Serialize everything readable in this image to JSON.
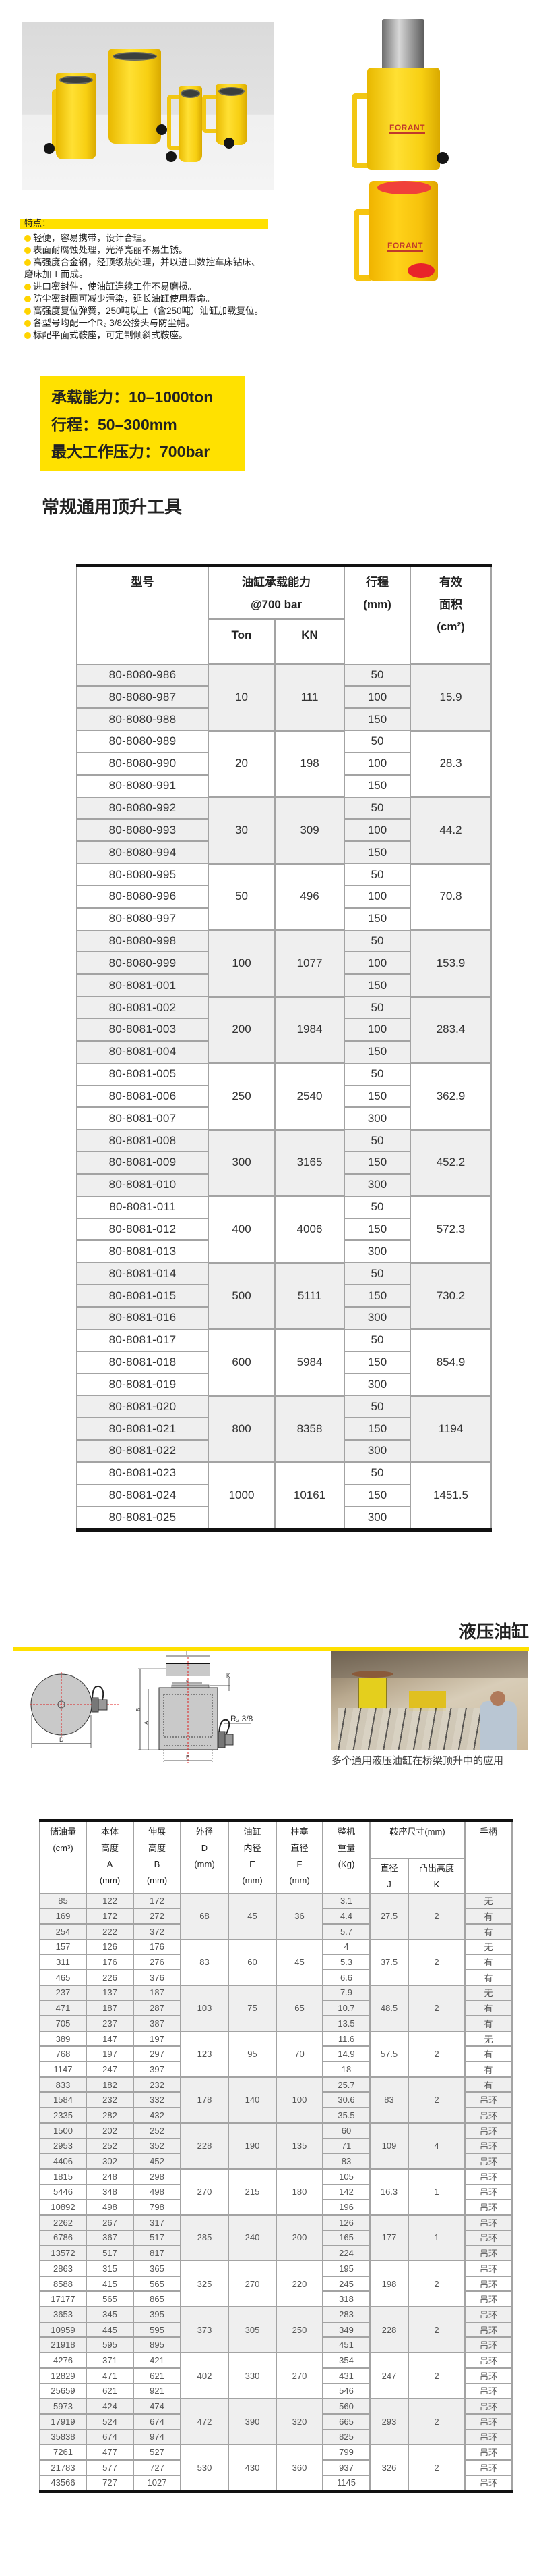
{
  "brand": {
    "logo_text": "FORANT"
  },
  "features": {
    "title": "特点：",
    "items": [
      "轻便，容易携带，设计合理。",
      "表面耐腐蚀处理，光泽亮丽不易生锈。",
      "高强度合金钢，经顶级热处理，并以进口数控车床钻床、\n磨床加工而成。",
      "进口密封件，使油缸连续工作不易磨损。",
      "防尘密封圈可减少污染，延长油缸使用寿命。",
      "高强度复位弹簧，250吨以上（含250吨）油缸加载复位。",
      "各型号均配一个R₂ 3/8公接头与防尘帽。",
      "标配平面式鞍座，可定制倾斜式鞍座。"
    ]
  },
  "specs": {
    "capacity": "承载能力：10–1000ton",
    "stroke": "行程：50–300mm",
    "pressure": "最大工作压力：700bar"
  },
  "section1": {
    "title": "常规通用顶升工具"
  },
  "table1": {
    "headers": {
      "model": "型号",
      "capacity": "油缸承载能力\n@700 bar",
      "ton": "Ton",
      "kn": "KN",
      "stroke": "行程\n(mm)",
      "area": "有效\n面积\n(cm²)"
    },
    "groups": [
      {
        "ton": "10",
        "kn": "111",
        "area": "15.9",
        "shaded": true,
        "rows": [
          {
            "model": "80-8080-986",
            "stroke": "50"
          },
          {
            "model": "80-8080-987",
            "stroke": "100"
          },
          {
            "model": "80-8080-988",
            "stroke": "150"
          }
        ]
      },
      {
        "ton": "20",
        "kn": "198",
        "area": "28.3",
        "shaded": false,
        "rows": [
          {
            "model": "80-8080-989",
            "stroke": "50"
          },
          {
            "model": "80-8080-990",
            "stroke": "100"
          },
          {
            "model": "80-8080-991",
            "stroke": "150"
          }
        ]
      },
      {
        "ton": "30",
        "kn": "309",
        "area": "44.2",
        "shaded": true,
        "rows": [
          {
            "model": "80-8080-992",
            "stroke": "50"
          },
          {
            "model": "80-8080-993",
            "stroke": "100"
          },
          {
            "model": "80-8080-994",
            "stroke": "150"
          }
        ]
      },
      {
        "ton": "50",
        "kn": "496",
        "area": "70.8",
        "shaded": false,
        "rows": [
          {
            "model": "80-8080-995",
            "stroke": "50"
          },
          {
            "model": "80-8080-996",
            "stroke": "100"
          },
          {
            "model": "80-8080-997",
            "stroke": "150"
          }
        ]
      },
      {
        "ton": "100",
        "kn": "1077",
        "area": "153.9",
        "shaded": true,
        "rows": [
          {
            "model": "80-8080-998",
            "stroke": "50"
          },
          {
            "model": "80-8080-999",
            "stroke": "100"
          },
          {
            "model": "80-8081-001",
            "stroke": "150"
          }
        ]
      },
      {
        "ton": "200",
        "kn": "1984",
        "area": "283.4",
        "shaded": true,
        "rows": [
          {
            "model": "80-8081-002",
            "stroke": "50"
          },
          {
            "model": "80-8081-003",
            "stroke": "100"
          },
          {
            "model": "80-8081-004",
            "stroke": "150"
          }
        ]
      },
      {
        "ton": "250",
        "kn": "2540",
        "area": "362.9",
        "shaded": false,
        "rows": [
          {
            "model": "80-8081-005",
            "stroke": "50"
          },
          {
            "model": "80-8081-006",
            "stroke": "150"
          },
          {
            "model": "80-8081-007",
            "stroke": "300"
          }
        ]
      },
      {
        "ton": "300",
        "kn": "3165",
        "area": "452.2",
        "shaded": true,
        "rows": [
          {
            "model": "80-8081-008",
            "stroke": "50"
          },
          {
            "model": "80-8081-009",
            "stroke": "150"
          },
          {
            "model": "80-8081-010",
            "stroke": "300"
          }
        ]
      },
      {
        "ton": "400",
        "kn": "4006",
        "area": "572.3",
        "shaded": false,
        "rows": [
          {
            "model": "80-8081-011",
            "stroke": "50"
          },
          {
            "model": "80-8081-012",
            "stroke": "150"
          },
          {
            "model": "80-8081-013",
            "stroke": "300"
          }
        ]
      },
      {
        "ton": "500",
        "kn": "5111",
        "area": "730.2",
        "shaded": true,
        "rows": [
          {
            "model": "80-8081-014",
            "stroke": "50"
          },
          {
            "model": "80-8081-015",
            "stroke": "150"
          },
          {
            "model": "80-8081-016",
            "stroke": "300"
          }
        ]
      },
      {
        "ton": "600",
        "kn": "5984",
        "area": "854.9",
        "shaded": false,
        "rows": [
          {
            "model": "80-8081-017",
            "stroke": "50"
          },
          {
            "model": "80-8081-018",
            "stroke": "150"
          },
          {
            "model": "80-8081-019",
            "stroke": "300"
          }
        ]
      },
      {
        "ton": "800",
        "kn": "8358",
        "area": "1194",
        "shaded": true,
        "rows": [
          {
            "model": "80-8081-020",
            "stroke": "50"
          },
          {
            "model": "80-8081-021",
            "stroke": "150"
          },
          {
            "model": "80-8081-022",
            "stroke": "300"
          }
        ]
      },
      {
        "ton": "1000",
        "kn": "10161",
        "area": "1451.5",
        "shaded": false,
        "rows": [
          {
            "model": "80-8081-023",
            "stroke": "50"
          },
          {
            "model": "80-8081-024",
            "stroke": "150"
          },
          {
            "model": "80-8081-025",
            "stroke": "300"
          }
        ]
      }
    ]
  },
  "section2": {
    "title": "液压油缸",
    "caption": "多个通用液压油缸在桥梁顶升中的应用",
    "diagram_labels": {
      "D": "D",
      "F": "F",
      "J": "J",
      "K": "K",
      "A": "A",
      "B": "B",
      "E": "E",
      "port": "R₂ 3/8"
    }
  },
  "table2": {
    "headers": {
      "oil": "储油量\n(cm³)",
      "A": "本体\n高度\nA\n(mm)",
      "B": "伸展\n高度\nB\n(mm)",
      "D": "外径\nD\n(mm)",
      "E": "油缸\n内径\nE\n(mm)",
      "F": "柱塞\n直径\nF\n(mm)",
      "weight": "整机\n重量\n(Kg)",
      "saddle": "鞍座尺寸(mm)",
      "J": "直径\nJ",
      "K": "凸出高度\nK",
      "handle": "手柄"
    },
    "groups": [
      {
        "D": "68",
        "E": "45",
        "F": "36",
        "J": "27.5",
        "K": "2",
        "shaded": true,
        "rows": [
          {
            "oil": "85",
            "A": "122",
            "B": "172",
            "weight": "3.1",
            "handle": "无"
          },
          {
            "oil": "169",
            "A": "172",
            "B": "272",
            "weight": "4.4",
            "handle": "有"
          },
          {
            "oil": "254",
            "A": "222",
            "B": "372",
            "weight": "5.7",
            "handle": "有"
          }
        ]
      },
      {
        "D": "83",
        "E": "60",
        "F": "45",
        "J": "37.5",
        "K": "2",
        "shaded": false,
        "rows": [
          {
            "oil": "157",
            "A": "126",
            "B": "176",
            "weight": "4",
            "handle": "无"
          },
          {
            "oil": "311",
            "A": "176",
            "B": "276",
            "weight": "5.3",
            "handle": "有"
          },
          {
            "oil": "465",
            "A": "226",
            "B": "376",
            "weight": "6.6",
            "handle": "有"
          }
        ]
      },
      {
        "D": "103",
        "E": "75",
        "F": "65",
        "J": "48.5",
        "K": "2",
        "shaded": true,
        "rows": [
          {
            "oil": "237",
            "A": "137",
            "B": "187",
            "weight": "7.9",
            "handle": "无"
          },
          {
            "oil": "471",
            "A": "187",
            "B": "287",
            "weight": "10.7",
            "handle": "有"
          },
          {
            "oil": "705",
            "A": "237",
            "B": "387",
            "weight": "13.5",
            "handle": "有"
          }
        ]
      },
      {
        "D": "123",
        "E": "95",
        "F": "70",
        "J": "57.5",
        "K": "2",
        "shaded": false,
        "rows": [
          {
            "oil": "389",
            "A": "147",
            "B": "197",
            "weight": "11.6",
            "handle": "无"
          },
          {
            "oil": "768",
            "A": "197",
            "B": "297",
            "weight": "14.9",
            "handle": "有"
          },
          {
            "oil": "1147",
            "A": "247",
            "B": "397",
            "weight": "18",
            "handle": "有"
          }
        ]
      },
      {
        "D": "178",
        "E": "140",
        "F": "100",
        "J": "83",
        "K": "2",
        "shaded": true,
        "rows": [
          {
            "oil": "833",
            "A": "182",
            "B": "232",
            "weight": "25.7",
            "handle": "有"
          },
          {
            "oil": "1584",
            "A": "232",
            "B": "332",
            "weight": "30.6",
            "handle": "吊环"
          },
          {
            "oil": "2335",
            "A": "282",
            "B": "432",
            "weight": "35.5",
            "handle": "吊环"
          }
        ]
      },
      {
        "D": "228",
        "E": "190",
        "F": "135",
        "J": "109",
        "K": "4",
        "shaded": true,
        "rows": [
          {
            "oil": "1500",
            "A": "202",
            "B": "252",
            "weight": "60",
            "handle": "吊环"
          },
          {
            "oil": "2953",
            "A": "252",
            "B": "352",
            "weight": "71",
            "handle": "吊环"
          },
          {
            "oil": "4406",
            "A": "302",
            "B": "452",
            "weight": "83",
            "handle": "吊环"
          }
        ]
      },
      {
        "D": "270",
        "E": "215",
        "F": "180",
        "J": "16.3",
        "K": "1",
        "shaded": false,
        "rows": [
          {
            "oil": "1815",
            "A": "248",
            "B": "298",
            "weight": "105",
            "handle": "吊环"
          },
          {
            "oil": "5446",
            "A": "348",
            "B": "498",
            "weight": "142",
            "handle": "吊环"
          },
          {
            "oil": "10892",
            "A": "498",
            "B": "798",
            "weight": "196",
            "handle": "吊环"
          }
        ]
      },
      {
        "D": "285",
        "E": "240",
        "F": "200",
        "J": "177",
        "K": "1",
        "shaded": true,
        "rows": [
          {
            "oil": "2262",
            "A": "267",
            "B": "317",
            "weight": "126",
            "handle": "吊环"
          },
          {
            "oil": "6786",
            "A": "367",
            "B": "517",
            "weight": "165",
            "handle": "吊环"
          },
          {
            "oil": "13572",
            "A": "517",
            "B": "817",
            "weight": "224",
            "handle": "吊环"
          }
        ]
      },
      {
        "D": "325",
        "E": "270",
        "F": "220",
        "J": "198",
        "K": "2",
        "shaded": false,
        "rows": [
          {
            "oil": "2863",
            "A": "315",
            "B": "365",
            "weight": "195",
            "handle": "吊环"
          },
          {
            "oil": "8588",
            "A": "415",
            "B": "565",
            "weight": "245",
            "handle": "吊环"
          },
          {
            "oil": "17177",
            "A": "565",
            "B": "865",
            "weight": "318",
            "handle": "吊环"
          }
        ]
      },
      {
        "D": "373",
        "E": "305",
        "F": "250",
        "J": "228",
        "K": "2",
        "shaded": true,
        "rows": [
          {
            "oil": "3653",
            "A": "345",
            "B": "395",
            "weight": "283",
            "handle": "吊环"
          },
          {
            "oil": "10959",
            "A": "445",
            "B": "595",
            "weight": "349",
            "handle": "吊环"
          },
          {
            "oil": "21918",
            "A": "595",
            "B": "895",
            "weight": "451",
            "handle": "吊环"
          }
        ]
      },
      {
        "D": "402",
        "E": "330",
        "F": "270",
        "J": "247",
        "K": "2",
        "shaded": false,
        "rows": [
          {
            "oil": "4276",
            "A": "371",
            "B": "421",
            "weight": "354",
            "handle": "吊环"
          },
          {
            "oil": "12829",
            "A": "471",
            "B": "621",
            "weight": "431",
            "handle": "吊环"
          },
          {
            "oil": "25659",
            "A": "621",
            "B": "921",
            "weight": "546",
            "handle": "吊环"
          }
        ]
      },
      {
        "D": "472",
        "E": "390",
        "F": "320",
        "J": "293",
        "K": "2",
        "shaded": true,
        "rows": [
          {
            "oil": "5973",
            "A": "424",
            "B": "474",
            "weight": "560",
            "handle": "吊环"
          },
          {
            "oil": "17919",
            "A": "524",
            "B": "674",
            "weight": "665",
            "handle": "吊环"
          },
          {
            "oil": "35838",
            "A": "674",
            "B": "974",
            "weight": "825",
            "handle": "吊环"
          }
        ]
      },
      {
        "D": "530",
        "E": "430",
        "F": "360",
        "J": "326",
        "K": "2",
        "shaded": false,
        "rows": [
          {
            "oil": "7261",
            "A": "477",
            "B": "527",
            "weight": "799",
            "handle": "吊环"
          },
          {
            "oil": "21783",
            "A": "577",
            "B": "727",
            "weight": "937",
            "handle": "吊环"
          },
          {
            "oil": "43566",
            "A": "727",
            "B": "1027",
            "weight": "1145",
            "handle": "吊环"
          }
        ]
      }
    ]
  },
  "colors": {
    "accent_yellow": "#ffe000",
    "table_border": "#a3a3a3",
    "row_shade": "#efefef",
    "rule": "#111111"
  }
}
